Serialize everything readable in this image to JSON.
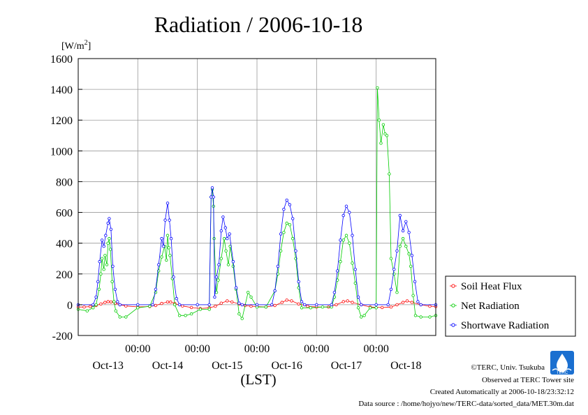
{
  "page": {
    "title": "Radiation / 2006-10-18",
    "y_unit_prefix": "[W/m",
    "y_unit_sup": "2",
    "y_unit_suffix": "]",
    "x_axis_label": "(LST)",
    "credits": [
      "©TERC, Univ. Tsukuba",
      "Observed at TERC Tower site",
      "Created Automatically at 2006-10-18/23:32:12",
      "Data source : /home/hojyo/new/TERC-data/sorted_data/MET.30m.dat"
    ],
    "logo_text": "TERC"
  },
  "chart_data": {
    "type": "line",
    "title": "Radiation / 2006-10-18",
    "xlabel": "(LST)",
    "ylabel": "[W/m2]",
    "x_unit": "day",
    "xlim": [
      0,
      6
    ],
    "ylim": [
      -200,
      1600
    ],
    "grid": true,
    "legend_position": "right",
    "y_ticks": [
      -200,
      0,
      200,
      400,
      600,
      800,
      1000,
      1200,
      1400,
      1600
    ],
    "x_tick_positions": [
      1,
      2,
      3,
      4,
      5
    ],
    "x_tick_labels": [
      "00:00",
      "00:00",
      "00:00",
      "00:00",
      "00:00"
    ],
    "x_date_positions": [
      0.5,
      1.5,
      2.5,
      3.5,
      4.5,
      5.5
    ],
    "x_date_labels": [
      "Oct-13",
      "Oct-14",
      "Oct-15",
      "Oct-16",
      "Oct-17",
      "Oct-18"
    ],
    "series": [
      {
        "name": "Soil Heat Flux",
        "color": "#ff0000",
        "marker": "circle",
        "points": [
          [
            0.0,
            -15
          ],
          [
            0.1,
            -15
          ],
          [
            0.2,
            -12
          ],
          [
            0.3,
            -5
          ],
          [
            0.38,
            5
          ],
          [
            0.45,
            15
          ],
          [
            0.5,
            20
          ],
          [
            0.55,
            18
          ],
          [
            0.62,
            10
          ],
          [
            0.7,
            0
          ],
          [
            0.8,
            -8
          ],
          [
            1.0,
            -14
          ],
          [
            1.2,
            -12
          ],
          [
            1.3,
            -5
          ],
          [
            1.4,
            8
          ],
          [
            1.5,
            18
          ],
          [
            1.55,
            17
          ],
          [
            1.62,
            8
          ],
          [
            1.75,
            -8
          ],
          [
            1.9,
            -18
          ],
          [
            2.05,
            -25
          ],
          [
            2.2,
            -20
          ],
          [
            2.3,
            -10
          ],
          [
            2.4,
            10
          ],
          [
            2.5,
            25
          ],
          [
            2.58,
            18
          ],
          [
            2.7,
            5
          ],
          [
            2.8,
            -5
          ],
          [
            2.9,
            -10
          ],
          [
            3.0,
            -12
          ],
          [
            3.15,
            -15
          ],
          [
            3.3,
            -5
          ],
          [
            3.42,
            15
          ],
          [
            3.5,
            30
          ],
          [
            3.58,
            25
          ],
          [
            3.7,
            5
          ],
          [
            3.85,
            -10
          ],
          [
            4.0,
            -15
          ],
          [
            4.2,
            -15
          ],
          [
            4.33,
            0
          ],
          [
            4.45,
            20
          ],
          [
            4.52,
            25
          ],
          [
            4.6,
            15
          ],
          [
            4.75,
            0
          ],
          [
            4.9,
            -15
          ],
          [
            5.1,
            -18
          ],
          [
            5.25,
            -15
          ],
          [
            5.35,
            0
          ],
          [
            5.45,
            15
          ],
          [
            5.52,
            25
          ],
          [
            5.6,
            15
          ],
          [
            5.75,
            0
          ],
          [
            5.9,
            -10
          ],
          [
            6.0,
            -12
          ]
        ]
      },
      {
        "name": "Net Radiation",
        "color": "#00cc00",
        "marker": "circle",
        "points": [
          [
            0.0,
            -30
          ],
          [
            0.15,
            -40
          ],
          [
            0.25,
            -20
          ],
          [
            0.3,
            0
          ],
          [
            0.35,
            100
          ],
          [
            0.38,
            200
          ],
          [
            0.4,
            300
          ],
          [
            0.43,
            230
          ],
          [
            0.45,
            320
          ],
          [
            0.48,
            260
          ],
          [
            0.5,
            400
          ],
          [
            0.52,
            430
          ],
          [
            0.54,
            360
          ],
          [
            0.57,
            150
          ],
          [
            0.6,
            20
          ],
          [
            0.63,
            -40
          ],
          [
            0.7,
            -80
          ],
          [
            0.8,
            -80
          ],
          [
            1.0,
            -20
          ],
          [
            1.2,
            -10
          ],
          [
            1.3,
            80
          ],
          [
            1.35,
            220
          ],
          [
            1.4,
            310
          ],
          [
            1.45,
            380
          ],
          [
            1.48,
            290
          ],
          [
            1.5,
            450
          ],
          [
            1.52,
            370
          ],
          [
            1.54,
            320
          ],
          [
            1.58,
            170
          ],
          [
            1.62,
            0
          ],
          [
            1.7,
            -70
          ],
          [
            1.8,
            -70
          ],
          [
            1.9,
            -60
          ],
          [
            2.05,
            -30
          ],
          [
            2.2,
            -30
          ],
          [
            2.23,
            700
          ],
          [
            2.25,
            750
          ],
          [
            2.27,
            640
          ],
          [
            2.28,
            430
          ],
          [
            2.32,
            80
          ],
          [
            2.35,
            160
          ],
          [
            2.4,
            300
          ],
          [
            2.45,
            430
          ],
          [
            2.48,
            350
          ],
          [
            2.52,
            260
          ],
          [
            2.55,
            380
          ],
          [
            2.6,
            250
          ],
          [
            2.65,
            100
          ],
          [
            2.7,
            -60
          ],
          [
            2.75,
            -90
          ],
          [
            2.85,
            80
          ],
          [
            2.9,
            50
          ],
          [
            3.0,
            -15
          ],
          [
            3.15,
            -15
          ],
          [
            3.3,
            90
          ],
          [
            3.35,
            200
          ],
          [
            3.4,
            350
          ],
          [
            3.45,
            470
          ],
          [
            3.5,
            530
          ],
          [
            3.55,
            520
          ],
          [
            3.6,
            430
          ],
          [
            3.65,
            300
          ],
          [
            3.7,
            110
          ],
          [
            3.75,
            -20
          ],
          [
            3.9,
            -20
          ],
          [
            4.1,
            -15
          ],
          [
            4.25,
            -15
          ],
          [
            4.3,
            50
          ],
          [
            4.35,
            160
          ],
          [
            4.4,
            280
          ],
          [
            4.45,
            420
          ],
          [
            4.5,
            450
          ],
          [
            4.55,
            400
          ],
          [
            4.6,
            270
          ],
          [
            4.65,
            140
          ],
          [
            4.7,
            -20
          ],
          [
            4.75,
            -80
          ],
          [
            4.8,
            -70
          ],
          [
            4.9,
            -20
          ],
          [
            5.0,
            -20
          ],
          [
            5.02,
            1410
          ],
          [
            5.05,
            1200
          ],
          [
            5.08,
            1050
          ],
          [
            5.12,
            1170
          ],
          [
            5.15,
            1110
          ],
          [
            5.18,
            1100
          ],
          [
            5.22,
            850
          ],
          [
            5.25,
            300
          ],
          [
            5.3,
            200
          ],
          [
            5.35,
            80
          ],
          [
            5.4,
            380
          ],
          [
            5.45,
            430
          ],
          [
            5.5,
            380
          ],
          [
            5.55,
            330
          ],
          [
            5.58,
            250
          ],
          [
            5.62,
            60
          ],
          [
            5.66,
            -70
          ],
          [
            5.75,
            -80
          ],
          [
            5.9,
            -80
          ],
          [
            6.0,
            -70
          ]
        ]
      },
      {
        "name": "Shortwave Radiation",
        "color": "#0000ff",
        "marker": "circle",
        "points": [
          [
            0.0,
            0
          ],
          [
            0.25,
            0
          ],
          [
            0.3,
            50
          ],
          [
            0.33,
            150
          ],
          [
            0.36,
            280
          ],
          [
            0.4,
            420
          ],
          [
            0.43,
            380
          ],
          [
            0.46,
            450
          ],
          [
            0.5,
            530
          ],
          [
            0.52,
            560
          ],
          [
            0.55,
            490
          ],
          [
            0.58,
            250
          ],
          [
            0.62,
            100
          ],
          [
            0.66,
            20
          ],
          [
            0.7,
            0
          ],
          [
            1.0,
            0
          ],
          [
            1.25,
            0
          ],
          [
            1.3,
            100
          ],
          [
            1.35,
            260
          ],
          [
            1.4,
            430
          ],
          [
            1.43,
            380
          ],
          [
            1.46,
            550
          ],
          [
            1.5,
            660
          ],
          [
            1.53,
            550
          ],
          [
            1.56,
            430
          ],
          [
            1.6,
            180
          ],
          [
            1.65,
            40
          ],
          [
            1.7,
            0
          ],
          [
            2.0,
            0
          ],
          [
            2.2,
            0
          ],
          [
            2.23,
            700
          ],
          [
            2.25,
            760
          ],
          [
            2.27,
            700
          ],
          [
            2.29,
            50
          ],
          [
            2.32,
            180
          ],
          [
            2.36,
            260
          ],
          [
            2.4,
            480
          ],
          [
            2.43,
            570
          ],
          [
            2.47,
            500
          ],
          [
            2.5,
            430
          ],
          [
            2.54,
            460
          ],
          [
            2.6,
            280
          ],
          [
            2.65,
            110
          ],
          [
            2.7,
            10
          ],
          [
            2.75,
            0
          ],
          [
            3.0,
            0
          ],
          [
            3.25,
            0
          ],
          [
            3.3,
            90
          ],
          [
            3.35,
            250
          ],
          [
            3.4,
            460
          ],
          [
            3.45,
            620
          ],
          [
            3.5,
            680
          ],
          [
            3.55,
            650
          ],
          [
            3.6,
            560
          ],
          [
            3.65,
            350
          ],
          [
            3.7,
            150
          ],
          [
            3.75,
            20
          ],
          [
            3.8,
            0
          ],
          [
            4.0,
            0
          ],
          [
            4.25,
            0
          ],
          [
            4.3,
            80
          ],
          [
            4.35,
            220
          ],
          [
            4.4,
            420
          ],
          [
            4.45,
            580
          ],
          [
            4.5,
            640
          ],
          [
            4.55,
            600
          ],
          [
            4.6,
            450
          ],
          [
            4.65,
            230
          ],
          [
            4.7,
            50
          ],
          [
            4.75,
            0
          ],
          [
            5.0,
            0
          ],
          [
            5.2,
            0
          ],
          [
            5.25,
            100
          ],
          [
            5.3,
            230
          ],
          [
            5.35,
            350
          ],
          [
            5.4,
            580
          ],
          [
            5.45,
            480
          ],
          [
            5.5,
            540
          ],
          [
            5.55,
            470
          ],
          [
            5.6,
            320
          ],
          [
            5.65,
            150
          ],
          [
            5.7,
            20
          ],
          [
            5.75,
            0
          ],
          [
            6.0,
            0
          ]
        ]
      }
    ]
  }
}
